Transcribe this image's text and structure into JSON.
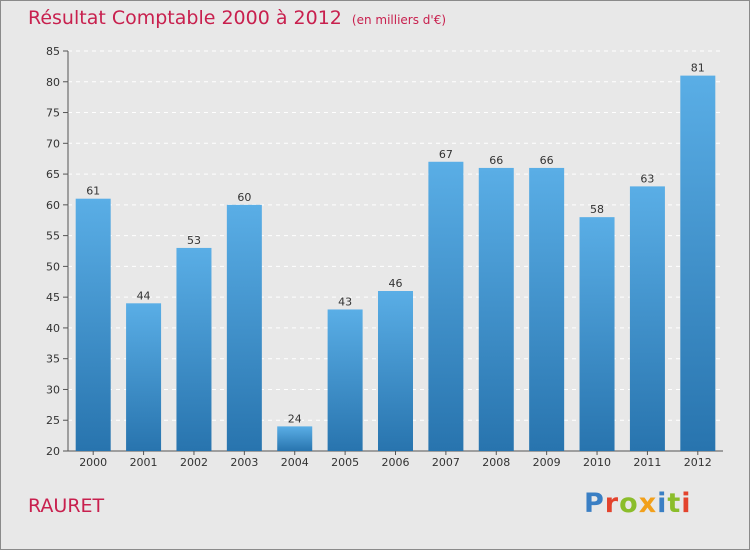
{
  "title": "Résultat Comptable 2000 à 2012",
  "subtitle": "(en milliers d'€)",
  "commune": "RAURET",
  "logo": {
    "letters": [
      "P",
      "r",
      "o",
      "x",
      "i",
      "t",
      "i"
    ],
    "colors": [
      "#3a7fc4",
      "#e3432d",
      "#8bbd2b",
      "#f2a01b",
      "#3a7fc4",
      "#8bbd2b",
      "#e3432d"
    ]
  },
  "colors": {
    "title": "#c8204e",
    "bar_top": "#5aaee6",
    "bar_bottom": "#2874ae",
    "background": "#e8e8e8"
  },
  "chart_data": {
    "type": "bar",
    "title": "Résultat Comptable 2000 à 2012",
    "subtitle": "(en milliers d'€)",
    "categories": [
      "2000",
      "2001",
      "2002",
      "2003",
      "2004",
      "2005",
      "2006",
      "2007",
      "2008",
      "2009",
      "2010",
      "2011",
      "2012"
    ],
    "values": [
      61,
      44,
      53,
      60,
      24,
      43,
      46,
      67,
      66,
      66,
      58,
      63,
      81
    ],
    "ylim": [
      20,
      85
    ],
    "yticks": [
      20,
      25,
      30,
      35,
      40,
      45,
      50,
      55,
      60,
      65,
      70,
      75,
      80,
      85
    ],
    "grid": true,
    "xlabel": "",
    "ylabel": ""
  }
}
